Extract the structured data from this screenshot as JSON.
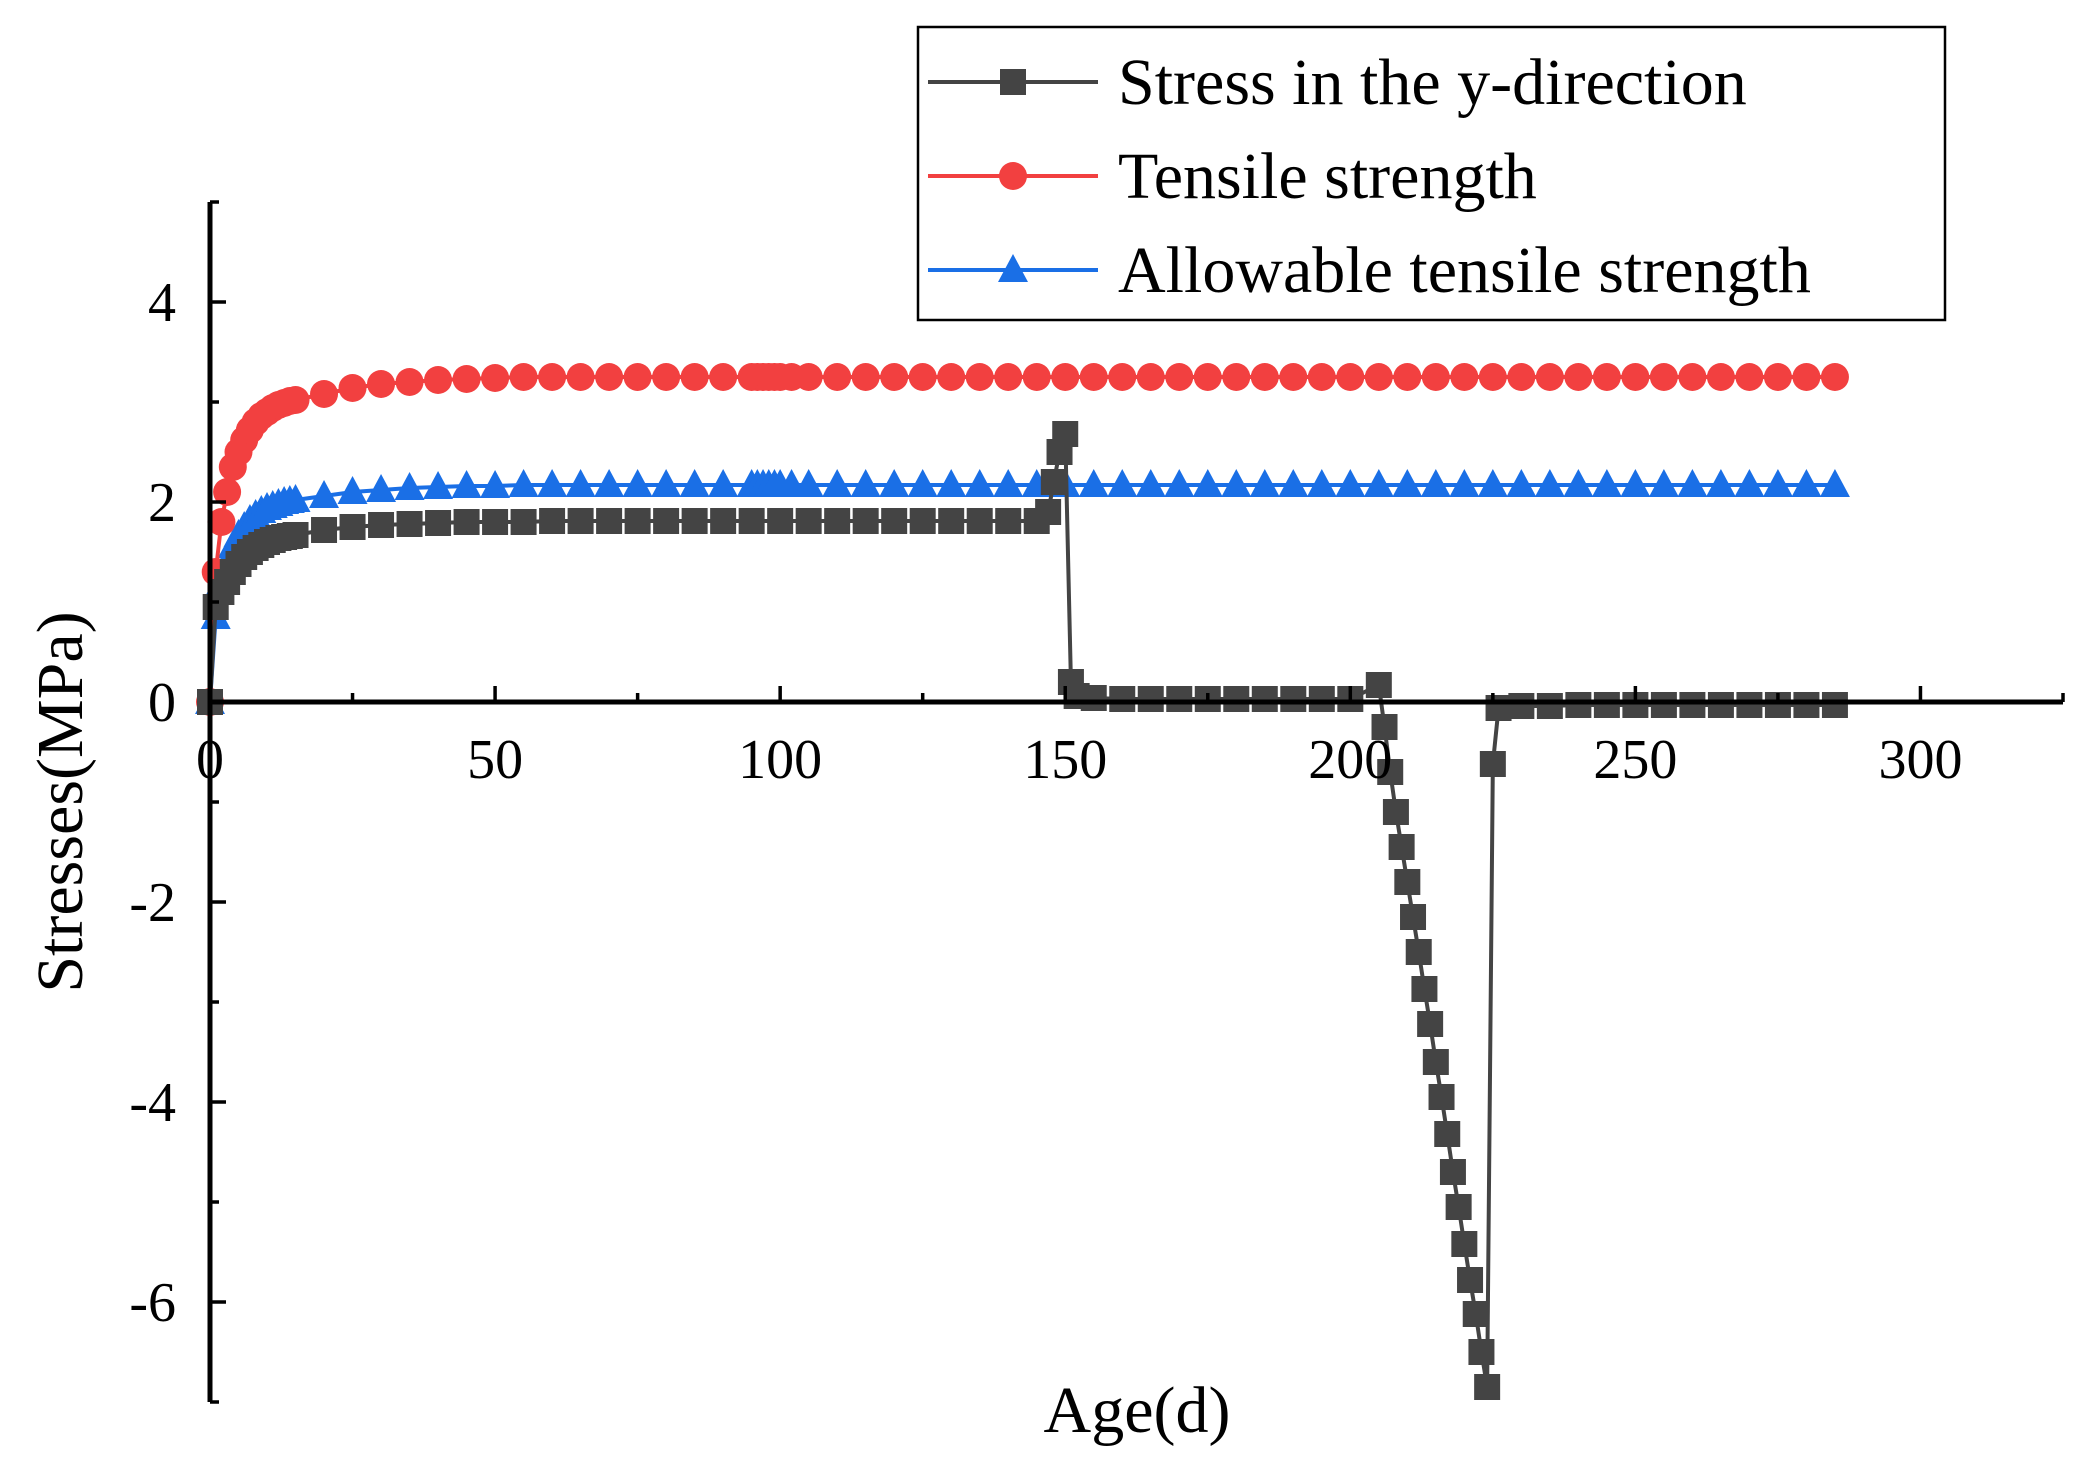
{
  "chart_data": {
    "type": "line",
    "title": "",
    "xlabel": "Age(d)",
    "ylabel": "Stresses(MPa)",
    "xlim": [
      0,
      325
    ],
    "ylim": [
      -7,
      5
    ],
    "xticks": [
      0,
      50,
      100,
      150,
      200,
      250,
      300
    ],
    "yticks": [
      -6,
      -4,
      -2,
      0,
      2,
      4
    ],
    "grid": false,
    "legend_position": "top-right",
    "series": [
      {
        "name": "Stress in the y-direction",
        "color": "#444444",
        "marker": "square",
        "x": [
          0,
          1,
          2,
          3,
          4,
          5,
          6,
          7,
          8,
          9,
          10,
          11,
          12,
          13,
          14,
          15,
          20,
          25,
          30,
          35,
          40,
          45,
          50,
          55,
          60,
          65,
          70,
          75,
          80,
          85,
          90,
          95,
          100,
          105,
          110,
          115,
          120,
          125,
          130,
          135,
          140,
          145,
          147,
          148,
          149,
          150,
          151,
          152,
          155,
          160,
          165,
          170,
          175,
          180,
          185,
          190,
          195,
          200,
          205,
          206,
          207,
          208,
          209,
          210,
          211,
          212,
          213,
          214,
          215,
          216,
          217,
          218,
          219,
          220,
          221,
          222,
          223,
          224,
          225,
          226,
          230,
          235,
          240,
          245,
          250,
          255,
          260,
          265,
          270,
          275,
          280,
          285
        ],
        "values": [
          0,
          0.95,
          1.1,
          1.2,
          1.3,
          1.38,
          1.45,
          1.5,
          1.54,
          1.57,
          1.6,
          1.62,
          1.64,
          1.65,
          1.66,
          1.67,
          1.72,
          1.75,
          1.77,
          1.78,
          1.79,
          1.8,
          1.8,
          1.8,
          1.81,
          1.81,
          1.81,
          1.81,
          1.81,
          1.81,
          1.81,
          1.81,
          1.81,
          1.81,
          1.81,
          1.81,
          1.81,
          1.81,
          1.81,
          1.81,
          1.81,
          1.81,
          1.9,
          2.2,
          2.5,
          2.68,
          0.2,
          0.06,
          0.04,
          0.03,
          0.03,
          0.03,
          0.03,
          0.03,
          0.03,
          0.03,
          0.03,
          0.03,
          0.17,
          -0.25,
          -0.7,
          -1.1,
          -1.45,
          -1.8,
          -2.15,
          -2.5,
          -2.87,
          -3.22,
          -3.6,
          -3.95,
          -4.32,
          -4.7,
          -5.05,
          -5.42,
          -5.78,
          -6.12,
          -6.5,
          -6.85,
          -0.62,
          -0.06,
          -0.04,
          -0.04,
          -0.03,
          -0.03,
          -0.03,
          -0.03,
          -0.03,
          -0.03,
          -0.03,
          -0.03,
          -0.03,
          -0.03
        ]
      },
      {
        "name": "Tensile strength",
        "color": "#f24040",
        "marker": "circle",
        "x": [
          0,
          1,
          2,
          3,
          4,
          5,
          6,
          7,
          8,
          9,
          10,
          11,
          12,
          13,
          14,
          15,
          20,
          25,
          30,
          35,
          40,
          45,
          50,
          55,
          60,
          65,
          70,
          75,
          80,
          85,
          90,
          95,
          96,
          97,
          98,
          99,
          100,
          102,
          105,
          110,
          115,
          120,
          125,
          130,
          135,
          140,
          145,
          150,
          155,
          160,
          165,
          170,
          175,
          180,
          185,
          190,
          195,
          200,
          205,
          210,
          215,
          220,
          225,
          230,
          235,
          240,
          245,
          250,
          255,
          260,
          265,
          270,
          275,
          280,
          285
        ],
        "values": [
          0,
          1.3,
          1.8,
          2.1,
          2.35,
          2.5,
          2.62,
          2.72,
          2.8,
          2.86,
          2.9,
          2.94,
          2.97,
          2.99,
          3.01,
          3.02,
          3.08,
          3.14,
          3.18,
          3.2,
          3.22,
          3.23,
          3.24,
          3.25,
          3.25,
          3.25,
          3.25,
          3.25,
          3.25,
          3.25,
          3.25,
          3.25,
          3.25,
          3.25,
          3.25,
          3.25,
          3.25,
          3.25,
          3.25,
          3.25,
          3.25,
          3.25,
          3.25,
          3.25,
          3.25,
          3.25,
          3.25,
          3.25,
          3.25,
          3.25,
          3.25,
          3.25,
          3.25,
          3.25,
          3.25,
          3.25,
          3.25,
          3.25,
          3.25,
          3.25,
          3.25,
          3.25,
          3.25,
          3.25,
          3.25,
          3.25,
          3.25,
          3.25,
          3.25,
          3.25,
          3.25,
          3.25,
          3.25,
          3.25,
          3.25
        ]
      },
      {
        "name": "Allowable tensile strength",
        "color": "#1a6fe6",
        "marker": "triangle",
        "x": [
          0,
          1,
          2,
          3,
          4,
          5,
          6,
          7,
          8,
          9,
          10,
          11,
          12,
          13,
          14,
          15,
          20,
          25,
          30,
          35,
          40,
          45,
          50,
          55,
          60,
          65,
          70,
          75,
          80,
          85,
          90,
          95,
          96,
          97,
          98,
          99,
          100,
          102,
          105,
          110,
          115,
          120,
          125,
          130,
          135,
          140,
          145,
          150,
          155,
          160,
          165,
          170,
          175,
          180,
          185,
          190,
          195,
          200,
          205,
          210,
          215,
          220,
          225,
          230,
          235,
          240,
          245,
          250,
          255,
          260,
          265,
          270,
          275,
          280,
          285
        ],
        "values": [
          0,
          0.85,
          1.2,
          1.4,
          1.56,
          1.67,
          1.75,
          1.82,
          1.87,
          1.91,
          1.94,
          1.96,
          1.98,
          2.0,
          2.01,
          2.02,
          2.06,
          2.1,
          2.12,
          2.14,
          2.15,
          2.16,
          2.16,
          2.17,
          2.17,
          2.17,
          2.17,
          2.17,
          2.17,
          2.17,
          2.17,
          2.17,
          2.17,
          2.17,
          2.17,
          2.17,
          2.17,
          2.17,
          2.17,
          2.17,
          2.17,
          2.17,
          2.17,
          2.17,
          2.17,
          2.17,
          2.17,
          2.17,
          2.17,
          2.17,
          2.17,
          2.17,
          2.17,
          2.17,
          2.17,
          2.17,
          2.17,
          2.17,
          2.17,
          2.17,
          2.17,
          2.17,
          2.17,
          2.17,
          2.17,
          2.17,
          2.17,
          2.17,
          2.17,
          2.17,
          2.17,
          2.17,
          2.17,
          2.17,
          2.17
        ]
      }
    ]
  }
}
